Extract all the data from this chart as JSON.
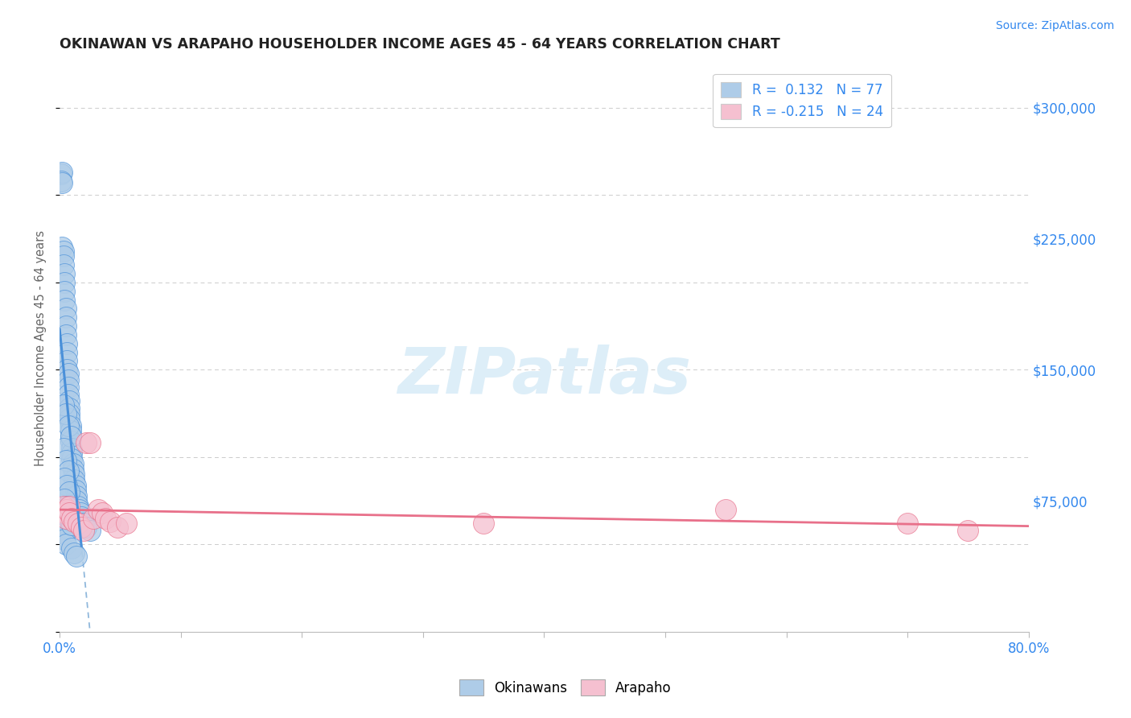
{
  "title": "OKINAWAN VS ARAPAHO HOUSEHOLDER INCOME AGES 45 - 64 YEARS CORRELATION CHART",
  "source": "Source: ZipAtlas.com",
  "ylabel": "Householder Income Ages 45 - 64 years",
  "xlim": [
    0.0,
    0.8
  ],
  "ylim": [
    0,
    325000
  ],
  "yticks": [
    0,
    75000,
    150000,
    225000,
    300000
  ],
  "ytick_labels": [
    "",
    "$75,000",
    "$150,000",
    "$225,000",
    "$300,000"
  ],
  "legend_r1": "R =  0.132   N = 77",
  "legend_r2": "R = -0.215   N = 24",
  "color_okinawan": "#aecce8",
  "color_arapaho": "#f5c0d0",
  "trendline_okinawan_color": "#4a90d9",
  "trendline_arapaho_color": "#e8708a",
  "dashed_line_color": "#90b8dc",
  "watermark_color": "#ddeef8",
  "okinawan_x": [
    0.001,
    0.002,
    0.001,
    0.002,
    0.002,
    0.003,
    0.003,
    0.003,
    0.004,
    0.004,
    0.004,
    0.004,
    0.005,
    0.005,
    0.005,
    0.005,
    0.006,
    0.006,
    0.006,
    0.006,
    0.007,
    0.007,
    0.007,
    0.007,
    0.008,
    0.008,
    0.008,
    0.008,
    0.009,
    0.009,
    0.009,
    0.009,
    0.01,
    0.01,
    0.01,
    0.011,
    0.011,
    0.012,
    0.012,
    0.013,
    0.013,
    0.014,
    0.014,
    0.015,
    0.016,
    0.017,
    0.018,
    0.019,
    0.02,
    0.022,
    0.025,
    0.003,
    0.005,
    0.007,
    0.009,
    0.003,
    0.005,
    0.007,
    0.004,
    0.006,
    0.008,
    0.004,
    0.006,
    0.008,
    0.003,
    0.005,
    0.007,
    0.003,
    0.004,
    0.005,
    0.01,
    0.012,
    0.014,
    0.004,
    0.006,
    0.008,
    0.01
  ],
  "okinawan_y": [
    262000,
    263000,
    258000,
    257000,
    220000,
    218000,
    215000,
    210000,
    205000,
    200000,
    195000,
    190000,
    185000,
    180000,
    175000,
    170000,
    165000,
    160000,
    155000,
    150000,
    148000,
    144000,
    140000,
    136000,
    132000,
    128000,
    125000,
    122000,
    118000,
    115000,
    112000,
    109000,
    105000,
    102000,
    99000,
    96000,
    93000,
    90000,
    87000,
    84000,
    81000,
    78000,
    75000,
    72000,
    70000,
    68000,
    66000,
    64000,
    62000,
    60000,
    58000,
    130000,
    125000,
    118000,
    112000,
    105000,
    98000,
    92000,
    88000,
    84000,
    80000,
    76000,
    72000,
    68000,
    65000,
    62000,
    59000,
    56000,
    53000,
    50000,
    48000,
    45000,
    43000,
    70000,
    67000,
    64000,
    61000
  ],
  "arapaho_x": [
    0.003,
    0.004,
    0.005,
    0.006,
    0.008,
    0.008,
    0.01,
    0.012,
    0.015,
    0.018,
    0.02,
    0.022,
    0.025,
    0.028,
    0.032,
    0.035,
    0.038,
    0.042,
    0.048,
    0.055,
    0.35,
    0.55,
    0.7,
    0.75
  ],
  "arapaho_y": [
    72000,
    68000,
    65000,
    70000,
    72000,
    68000,
    65000,
    63000,
    62000,
    60000,
    58000,
    108000,
    108000,
    65000,
    70000,
    68000,
    65000,
    63000,
    60000,
    62000,
    62000,
    70000,
    62000,
    58000
  ]
}
